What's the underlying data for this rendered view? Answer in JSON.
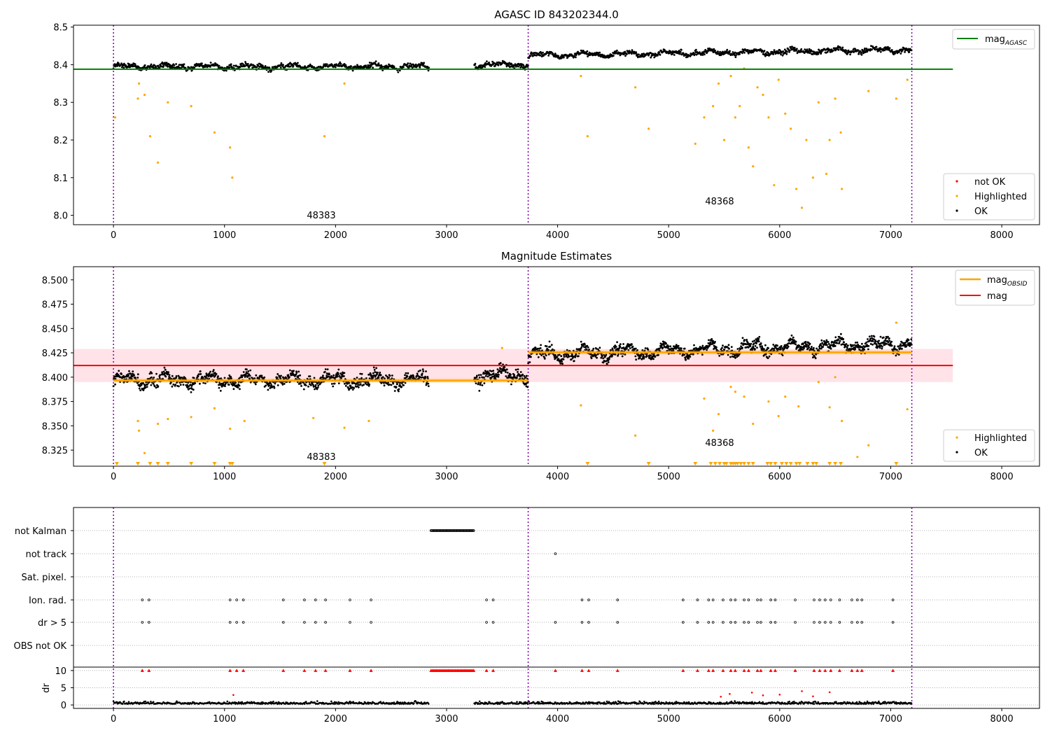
{
  "chart_data": [
    {
      "type": "scatter",
      "title": "AGASC ID 843202344.0",
      "xlim": [
        -360,
        8340
      ],
      "ylim": [
        7.975,
        8.505
      ],
      "xticks": [
        0,
        1000,
        2000,
        3000,
        4000,
        5000,
        6000,
        7000,
        8000
      ],
      "yticks": [
        8.0,
        8.1,
        8.2,
        8.3,
        8.4,
        8.5
      ],
      "yticklabels": [
        "8.0",
        "8.1",
        "8.2",
        "8.3",
        "8.4",
        "8.5"
      ],
      "obs_boundaries": [
        0,
        3735,
        7190
      ],
      "reference_lines": [
        {
          "name": "mag_AGASC",
          "y": 8.388,
          "x": [
            -360,
            7560
          ],
          "color": "#008000"
        }
      ],
      "legend_lines": [
        "mag",
        "AGASC"
      ],
      "legend_points": [
        "not OK",
        "Highlighted",
        "OK"
      ],
      "colors": {
        "ok": "#000000",
        "highlighted": "#ffa500",
        "not_ok": "#ff0000"
      },
      "obsid_labels": [
        {
          "x": 1900,
          "y": 7.99,
          "text": "48383"
        },
        {
          "x": 5450,
          "y": 8.028,
          "text": "48368"
        }
      ],
      "series": [
        {
          "segment": [
            0,
            2840
          ],
          "level": 8.395,
          "spread": 0.012
        },
        {
          "segment": [
            3250,
            3735
          ],
          "level": 8.4,
          "spread": 0.012
        },
        {
          "segment": [
            3735,
            7190
          ],
          "level": 8.425,
          "trend": 0.015,
          "spread": 0.011
        }
      ],
      "highlighted_points": [
        [
          15,
          8.26
        ],
        [
          220,
          8.31
        ],
        [
          230,
          8.35
        ],
        [
          280,
          8.32
        ],
        [
          330,
          8.21
        ],
        [
          400,
          8.14
        ],
        [
          490,
          8.3
        ],
        [
          700,
          8.29
        ],
        [
          910,
          8.22
        ],
        [
          1050,
          8.18
        ],
        [
          1070,
          8.1
        ],
        [
          2080,
          8.35
        ],
        [
          1900,
          8.21
        ],
        [
          4210,
          8.37
        ],
        [
          4270,
          8.21
        ],
        [
          4700,
          8.34
        ],
        [
          4820,
          8.23
        ],
        [
          5240,
          8.19
        ],
        [
          5320,
          8.26
        ],
        [
          5400,
          8.29
        ],
        [
          5450,
          8.35
        ],
        [
          5500,
          8.2
        ],
        [
          5560,
          8.37
        ],
        [
          5600,
          8.26
        ],
        [
          5640,
          8.29
        ],
        [
          5680,
          8.39
        ],
        [
          5720,
          8.18
        ],
        [
          5760,
          8.13
        ],
        [
          5800,
          8.34
        ],
        [
          5850,
          8.32
        ],
        [
          5900,
          8.26
        ],
        [
          5950,
          8.08
        ],
        [
          5990,
          8.36
        ],
        [
          6050,
          8.27
        ],
        [
          6100,
          8.23
        ],
        [
          6150,
          8.07
        ],
        [
          6200,
          8.02
        ],
        [
          6240,
          8.2
        ],
        [
          6300,
          8.1
        ],
        [
          6350,
          8.3
        ],
        [
          6420,
          8.11
        ],
        [
          6450,
          8.2
        ],
        [
          6500,
          8.31
        ],
        [
          6550,
          8.22
        ],
        [
          6560,
          8.07
        ],
        [
          6800,
          8.33
        ],
        [
          7050,
          8.31
        ],
        [
          7150,
          8.36
        ]
      ]
    },
    {
      "type": "scatter",
      "title": "Magnitude Estimates",
      "xlim": [
        -360,
        8340
      ],
      "ylim": [
        8.3085,
        8.5135
      ],
      "xticks": [
        0,
        1000,
        2000,
        3000,
        4000,
        5000,
        6000,
        7000,
        8000
      ],
      "yticks": [
        8.325,
        8.35,
        8.375,
        8.4,
        8.425,
        8.45,
        8.475,
        8.5
      ],
      "yticklabels": [
        "8.325",
        "8.350",
        "8.375",
        "8.400",
        "8.425",
        "8.450",
        "8.475",
        "8.500"
      ],
      "obs_boundaries": [
        0,
        3735,
        7190
      ],
      "mag_band": {
        "y": [
          8.395,
          8.429
        ],
        "x": [
          -360,
          7560
        ],
        "color": "#ffc0cb"
      },
      "mag_line": {
        "y": 8.412,
        "x": [
          -360,
          7560
        ],
        "color": "#ff0000"
      },
      "obsid_mag_lines": [
        {
          "x": [
            0,
            3735
          ],
          "y": 8.3965,
          "color": "#ffa500"
        },
        {
          "x": [
            3735,
            7190
          ],
          "y": 8.4255,
          "color": "#ffa500"
        }
      ],
      "legend_lines": [
        "mag",
        "OBSID",
        "mag"
      ],
      "legend_points": [
        "Highlighted",
        "OK"
      ],
      "colors": {
        "ok": "#000000",
        "highlighted": "#ffa500",
        "mag": "#ff0000"
      },
      "obsid_labels": [
        {
          "x": 1900,
          "y": 8.316,
          "text": "48383"
        },
        {
          "x": 5450,
          "y": 8.3315,
          "text": "48368"
        }
      ],
      "series": [
        {
          "segment": [
            0,
            2840
          ],
          "level": 8.397,
          "spread": 0.011
        },
        {
          "segment": [
            3250,
            3735
          ],
          "level": 8.402,
          "spread": 0.011
        },
        {
          "segment": [
            3735,
            7190
          ],
          "level": 8.423,
          "trend": 0.012,
          "spread": 0.01
        }
      ],
      "highlighted_points": [
        [
          220,
          8.355
        ],
        [
          230,
          8.345
        ],
        [
          280,
          8.322
        ],
        [
          400,
          8.352
        ],
        [
          490,
          8.357
        ],
        [
          700,
          8.359
        ],
        [
          910,
          8.368
        ],
        [
          1050,
          8.347
        ],
        [
          1180,
          8.355
        ],
        [
          1800,
          8.358
        ],
        [
          2080,
          8.348
        ],
        [
          2300,
          8.355
        ],
        [
          3500,
          8.43
        ],
        [
          4210,
          8.371
        ],
        [
          4700,
          8.34
        ],
        [
          5320,
          8.378
        ],
        [
          5400,
          8.345
        ],
        [
          5450,
          8.362
        ],
        [
          5560,
          8.39
        ],
        [
          5600,
          8.385
        ],
        [
          5680,
          8.38
        ],
        [
          5760,
          8.352
        ],
        [
          5900,
          8.375
        ],
        [
          5990,
          8.36
        ],
        [
          6050,
          8.38
        ],
        [
          6170,
          8.37
        ],
        [
          6350,
          8.395
        ],
        [
          6450,
          8.369
        ],
        [
          6500,
          8.4
        ],
        [
          6560,
          8.355
        ],
        [
          6700,
          8.318
        ],
        [
          6800,
          8.33
        ],
        [
          7050,
          8.456
        ],
        [
          7150,
          8.367
        ]
      ],
      "clipped_low_x": [
        30,
        220,
        330,
        400,
        490,
        700,
        910,
        1050,
        1070,
        1900,
        4270,
        4820,
        5240,
        5380,
        5420,
        5460,
        5500,
        5520,
        5560,
        5580,
        5600,
        5620,
        5650,
        5680,
        5720,
        5760,
        5890,
        5920,
        5960,
        6020,
        6060,
        6100,
        6150,
        6180,
        6250,
        6300,
        6330,
        6450,
        6500,
        6550,
        7050
      ]
    },
    {
      "type": "scatter",
      "title": "",
      "xlim": [
        -360,
        8340
      ],
      "xticks": [
        0,
        1000,
        2000,
        3000,
        4000,
        5000,
        6000,
        7000,
        8000
      ],
      "flag_rows": [
        "not Kalman",
        "not track",
        "Sat. pixel.",
        "Ion. rad.",
        "dr > 5",
        "OBS not OK"
      ],
      "ylabel": "dr",
      "dr_ylim": [
        -1,
        11
      ],
      "dr_yticks": [
        0,
        5,
        10
      ],
      "obs_boundaries": [
        0,
        3735,
        7190
      ],
      "not_kalman_range": [
        2860,
        3250
      ],
      "not_track_x": [
        3980
      ],
      "ion_rad_x": [
        260,
        320,
        1050,
        1110,
        1170,
        1530,
        1720,
        1820,
        1910,
        2130,
        2320,
        3360,
        3420,
        4220,
        4280,
        4540,
        5130,
        5260,
        5360,
        5400,
        5490,
        5560,
        5600,
        5680,
        5720,
        5800,
        5830,
        5920,
        5960,
        6140,
        6310,
        6360,
        6410,
        6460,
        6540,
        6650,
        6700,
        6740,
        7020
      ],
      "dr_gt5_x": [
        260,
        320,
        1050,
        1110,
        1170,
        1530,
        1720,
        1820,
        1910,
        2130,
        2320,
        3360,
        3420,
        3980,
        4220,
        4280,
        4540,
        5130,
        5260,
        5360,
        5400,
        5490,
        5560,
        5600,
        5680,
        5720,
        5800,
        5830,
        5920,
        5960,
        6140,
        6310,
        6360,
        6410,
        6460,
        6540,
        6650,
        6700,
        6740,
        7020
      ],
      "dr_segments": [
        [
          0,
          2840
        ],
        [
          3250,
          7190
        ]
      ],
      "dr_extra_points": [
        [
          5550,
          3.2
        ],
        [
          5750,
          3.6
        ],
        [
          5850,
          2.8
        ],
        [
          6000,
          3.0
        ],
        [
          6200,
          4.0
        ],
        [
          6450,
          3.7
        ],
        [
          1080,
          2.9
        ],
        [
          5470,
          2.4
        ],
        [
          6300,
          2.5
        ]
      ],
      "colors": {
        "ok": "#000000",
        "not_ok": "#ff0000"
      }
    }
  ]
}
